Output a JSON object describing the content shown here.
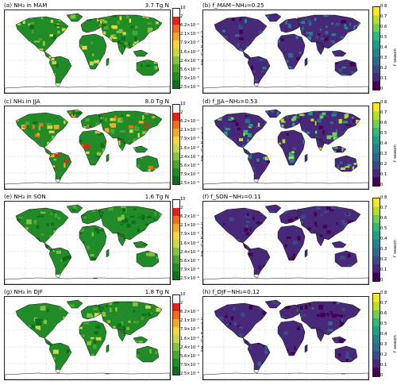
{
  "left_panels": [
    {
      "title": "(a) NH₃ in MAM",
      "total": "3.7 Tg N"
    },
    {
      "title": "(c) NH₃ in JJA",
      "total": "8.0 Tg N"
    },
    {
      "title": "(e) NH₃ in SON",
      "total": "1.6 Tg N"
    },
    {
      "title": "(g) NH₃ in DJF",
      "total": "1.8 Tg N"
    }
  ],
  "right_panels": [
    {
      "title": "(b) f_MAM−NH₃=0.25"
    },
    {
      "title": "(d) f_JJA−NH₃=0.53"
    },
    {
      "title": "(f) f_SON−NH₃=0.11"
    },
    {
      "title": "(h) f_DJF−NH₃=0.12"
    }
  ],
  "left_colorbar": {
    "label": "NH₃ (Gg N grid⁻¹)",
    "ticks": [
      "10",
      "2",
      "6.2×10⁻¹",
      "2.1×10⁻¹",
      "7.9×10⁻²",
      "1.6×10⁻²",
      "2.4×10⁻³",
      "5.6×10⁻⁴",
      "7.9×10⁻⁵",
      "2.5×10⁻⁶"
    ],
    "colors": [
      "#ffffff",
      "#e8201a",
      "#f26b1e",
      "#f6a62a",
      "#f3d63a",
      "#c8d84a",
      "#86c240",
      "#49a633",
      "#218c27",
      "#0e6f1a"
    ]
  },
  "right_colorbar": {
    "label": "f_season",
    "ticks": [
      "0.8",
      "0.7",
      "0.6",
      "0.5",
      "0.4",
      "0.3",
      "0.2",
      "0.1",
      "0"
    ],
    "colors": [
      "#fde725",
      "#b5de2b",
      "#6ece58",
      "#35b779",
      "#1f9e89",
      "#26828e",
      "#31688e",
      "#3e4989",
      "#482878",
      "#440154"
    ]
  }
}
